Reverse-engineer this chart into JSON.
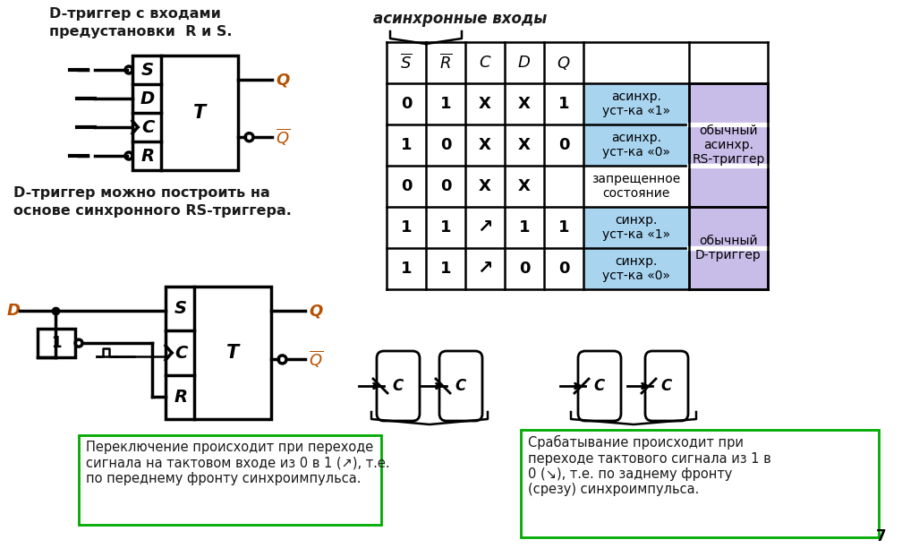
{
  "title_text1": "D-триггер с входами",
  "title_text2": "предустановки  R и S.",
  "text2_1": "D-триггер можно построить на",
  "text2_2": "основе синхронного RS-триггера.",
  "async_label": "асинхронные входы",
  "note1_line1": "Переключение происходит при переходе",
  "note1_line2": "сигнала на тактовом входе из 0 в 1 (↗), т.е.",
  "note1_line3": "по переднему фронту синхроимпульса.",
  "note2_line1": "Срабатывание происходит при",
  "note2_line2": "переходе тактового сигнала из 1 в",
  "note2_line3": "0 (↘), т.е. по заднему фронту",
  "note2_line4": "(срезу) синхроимпульса.",
  "page_num": "7",
  "blue_light": "#a8d4f0",
  "purple_light": "#c8bce8",
  "green_border": "#00aa00",
  "row_data": [
    [
      "0",
      "1",
      "X",
      "X",
      "1",
      "асинхр.\nуст-ка «1»"
    ],
    [
      "1",
      "0",
      "X",
      "X",
      "0",
      "асинхр.\nуст-ка «0»"
    ],
    [
      "0",
      "0",
      "X",
      "X",
      "",
      "запрещенное\nсостояние"
    ],
    [
      "1",
      "1",
      "↗",
      "1",
      "1",
      "синхр.\nуст-ка «1»"
    ],
    [
      "1",
      "1",
      "↗",
      "0",
      "0",
      "синхр.\nуст-ка «0»"
    ]
  ],
  "right_col1": "обычный\nасинхр.\nRS-триггер",
  "right_col2": "обычный\nD-триггер"
}
